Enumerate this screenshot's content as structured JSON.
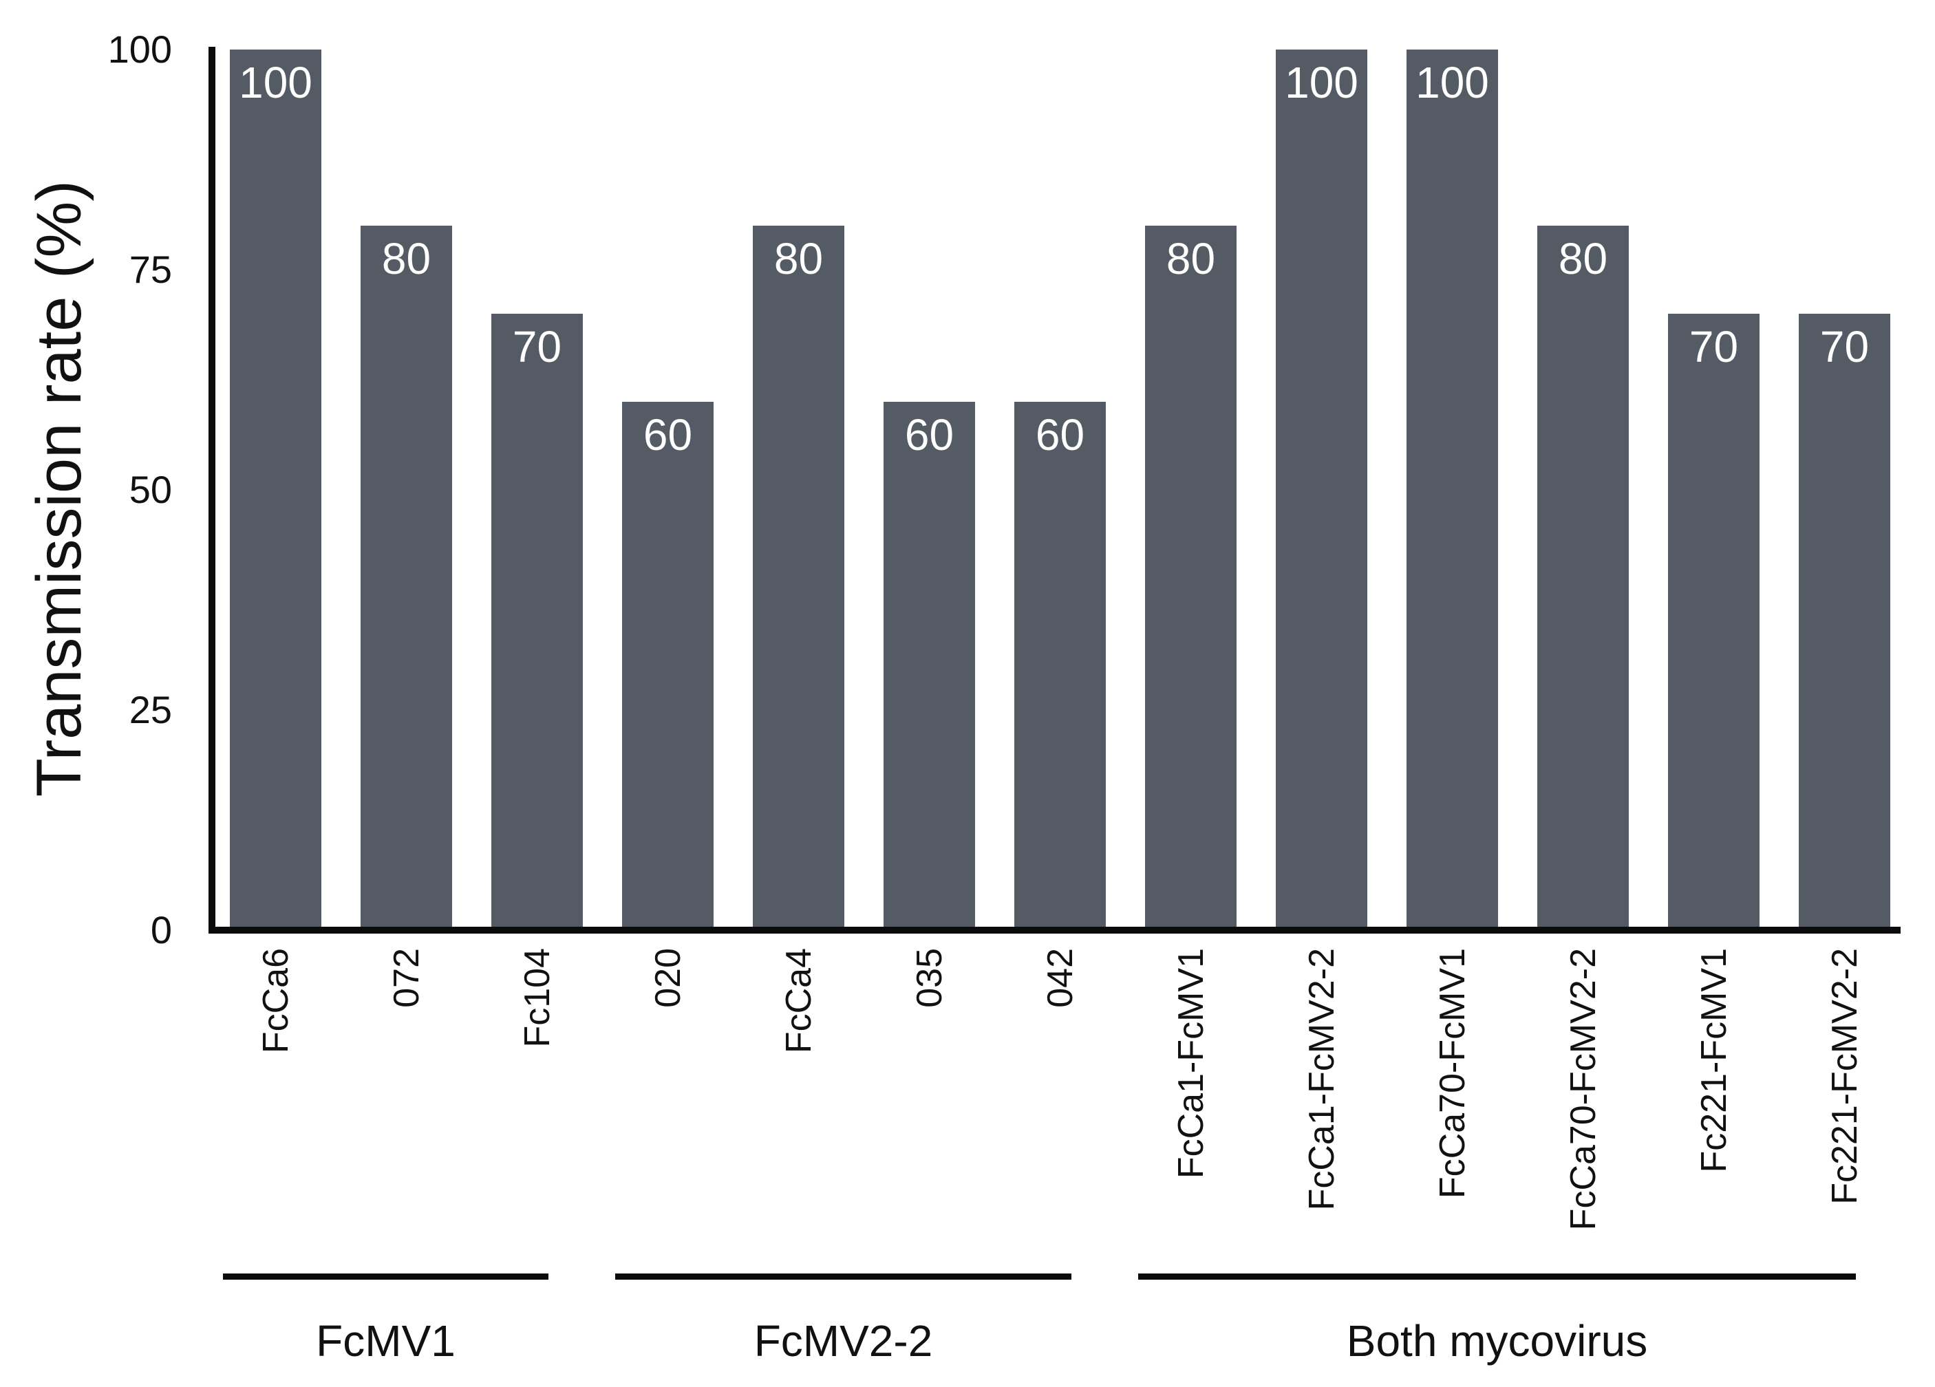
{
  "chart_data": {
    "type": "bar",
    "title": "",
    "xlabel": "",
    "ylabel": "Transmission rate (%)",
    "ylim": [
      0,
      100
    ],
    "yticks": [
      "0",
      "25",
      "50",
      "75",
      "100"
    ],
    "ytick_values": [
      0,
      25,
      50,
      75,
      100
    ],
    "grid": false,
    "legend": false,
    "categories": [
      "FcCa6",
      "072",
      "Fc104",
      "020",
      "FcCa4",
      "035",
      "042",
      "FcCa1-FcMV1",
      "FcCa1-FcMV2-2",
      "FcCa70-FcMV1",
      "FcCa70-FcMV2-2",
      "Fc221-FcMV1",
      "Fc221-FcMV2-2"
    ],
    "values": [
      100,
      80,
      70,
      60,
      80,
      60,
      60,
      80,
      100,
      100,
      80,
      70,
      70
    ],
    "bar_labels": [
      "100",
      "80",
      "70",
      "60",
      "80",
      "60",
      "60",
      "80",
      "100",
      "100",
      "80",
      "70",
      "70"
    ],
    "groups": [
      {
        "label": "FcMV1",
        "start": 0,
        "end": 2
      },
      {
        "label": "FcMV2-2",
        "start": 3,
        "end": 6
      },
      {
        "label": "Both mycovirus",
        "start": 7,
        "end": 12
      }
    ],
    "colors": {
      "bar_fill": "#555B64",
      "bar_label": "#FFFFFF",
      "axis": "#0B0B0B",
      "text": "#111111",
      "background": "#FFFFFF"
    }
  }
}
